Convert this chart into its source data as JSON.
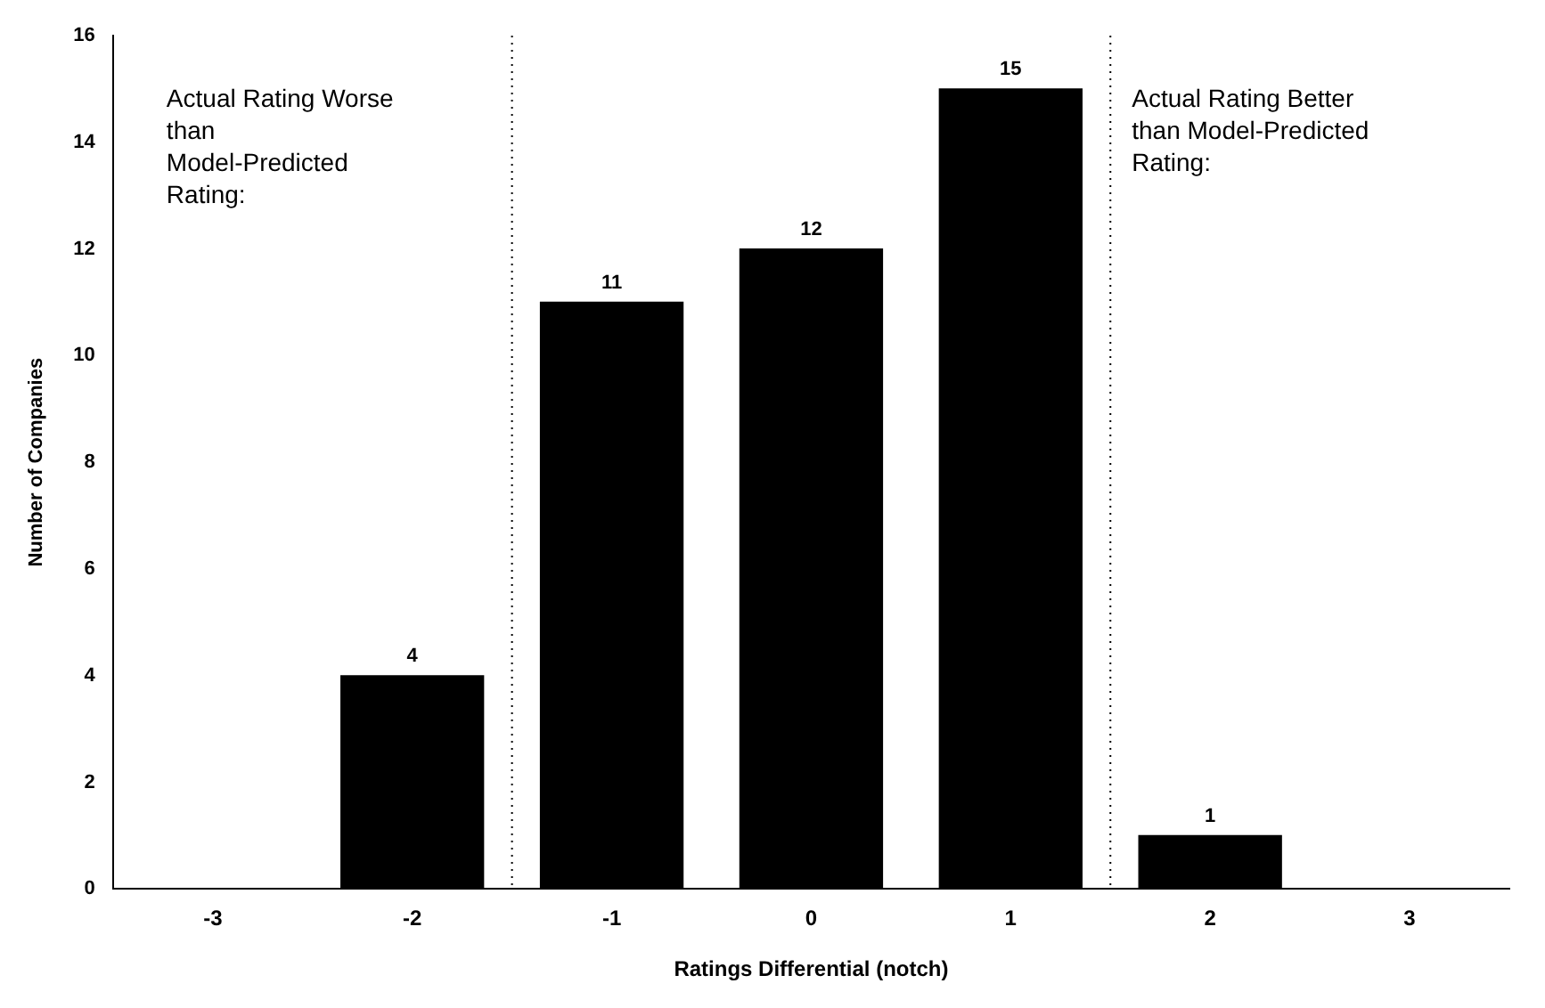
{
  "chart_data": {
    "type": "bar",
    "xlabel": "Ratings Differential (notch)",
    "ylabel": "Number of Companies",
    "x": [
      -2,
      -1,
      0,
      1,
      2
    ],
    "values": [
      4,
      11,
      12,
      15,
      1
    ],
    "value_labels": [
      "4",
      "11",
      "12",
      "15",
      "1"
    ],
    "color": "#000000",
    "xlim": [
      -3.5,
      3.5
    ],
    "xticks": [
      -3,
      -2,
      -1,
      0,
      1,
      2,
      3
    ],
    "ylim": [
      0,
      16
    ],
    "yticks": [
      0,
      2,
      4,
      6,
      8,
      10,
      12,
      14,
      16
    ],
    "grid": false,
    "legend": false,
    "ref_lines": [
      {
        "axis": "x",
        "value": -1.5,
        "color": "#000000",
        "line_style": "dotted"
      },
      {
        "axis": "x",
        "value": 1.5,
        "color": "#000000",
        "line_style": "dotted"
      }
    ],
    "annotations": [
      "Actual Rating Worse than Model-Predicted Rating:",
      "Actual Rating Better than Model-Predicted Rating:"
    ]
  }
}
